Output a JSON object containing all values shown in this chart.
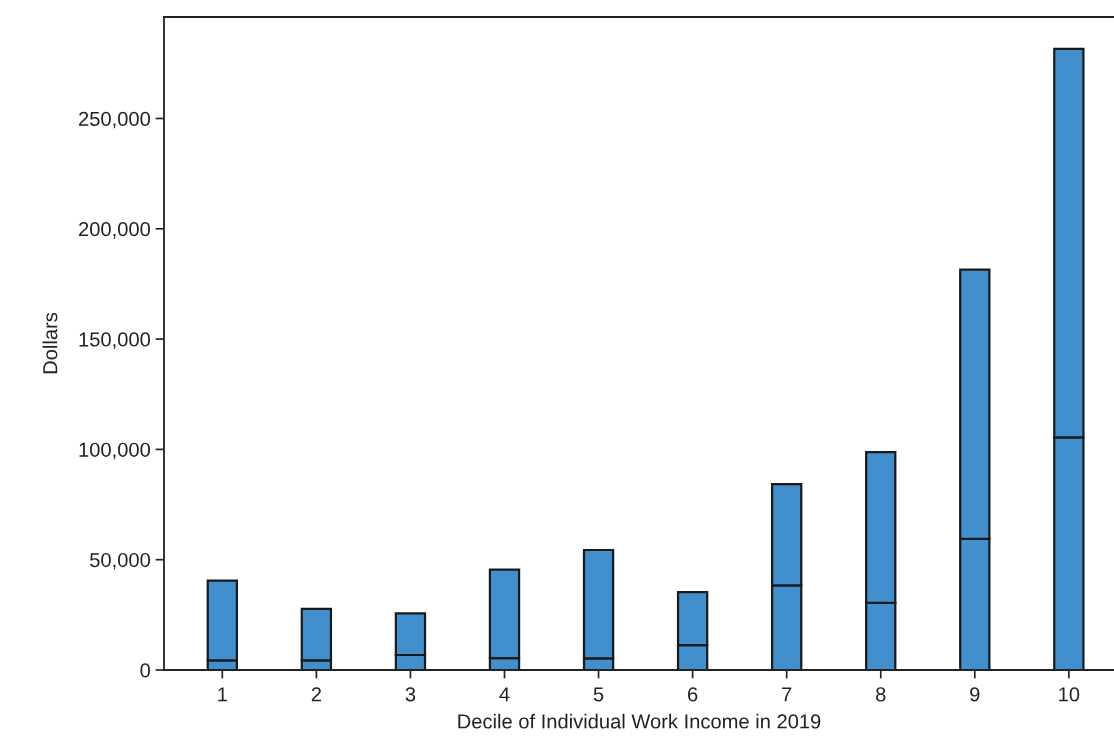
{
  "chart_data": {
    "type": "bar",
    "stacked": true,
    "xlabel": "Decile of Individual Work Income in 2019",
    "ylabel": "Dollars",
    "categories": [
      "1",
      "2",
      "3",
      "4",
      "5",
      "6",
      "7",
      "8",
      "9",
      "10"
    ],
    "series": [
      {
        "color": "#418fcd",
        "values": [
          4400,
          4400,
          6800,
          5400,
          5300,
          11300,
          38400,
          30400,
          59400,
          105400
        ]
      },
      {
        "color": "#418fcd",
        "values": [
          36100,
          23300,
          18900,
          40100,
          49100,
          24000,
          45900,
          68400,
          122100,
          176200
        ]
      }
    ],
    "ylim": [
      0,
      296000
    ],
    "yticks": [
      0,
      {
        "value": 50000,
        "label": "50,000"
      },
      {
        "value": 100000,
        "label": "100,000"
      },
      {
        "value": 150000,
        "label": "150,000"
      },
      {
        "value": 200000,
        "label": "200,000"
      },
      {
        "value": 250000,
        "label": "250,000"
      }
    ],
    "grid": false,
    "legend": false
  }
}
